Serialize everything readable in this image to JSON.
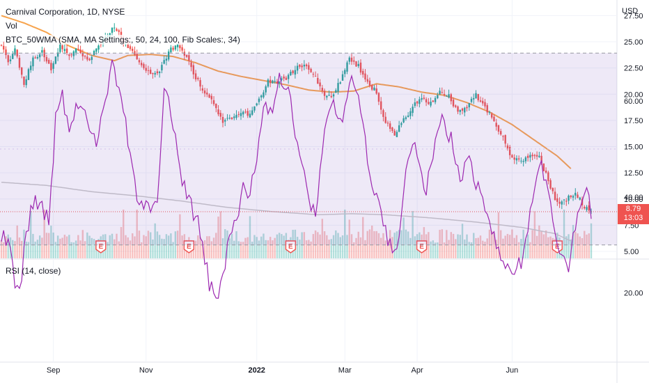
{
  "legend": {
    "symbol": "Carnival Corporation, 1D, NYSE",
    "vol": "Vol",
    "ma": "BTC_50WMA (SMA, MA Settings:, 50, 24, 100, Fib Scales:, 34)",
    "rsi": "RSI (14, close)"
  },
  "currency": "USD",
  "last_price": "8.79",
  "countdown": "13:03",
  "earnings_label": "E",
  "colors": {
    "up": "#26a69a",
    "down": "#ef5350",
    "ma_orange": "#f7a44d",
    "ma_gray": "#c9c9c9",
    "rsi_line": "#9c27b0",
    "rsi_band": "#7e57c2",
    "price_line": "#ef5350",
    "grid": "#f0f3fa"
  },
  "chart_data": [
    {
      "type": "candlestick",
      "title": "Carnival Corporation, 1D, NYSE",
      "ylabel": "USD",
      "ylim": [
        4,
        28
      ],
      "y_ticks": [
        5.0,
        7.5,
        10.0,
        12.5,
        15.0,
        17.5,
        20.0,
        22.5,
        25.0,
        27.5
      ],
      "x_ticks": [
        "Sep",
        "Nov",
        "2022",
        "Mar",
        "Apr",
        "Jun"
      ],
      "x_tick_index": [
        23,
        64,
        113,
        152,
        184,
        226
      ],
      "close_anchors": [
        [
          0,
          24.8
        ],
        [
          3,
          23.0
        ],
        [
          6,
          24.2
        ],
        [
          10,
          20.9
        ],
        [
          14,
          23.5
        ],
        [
          18,
          24.0
        ],
        [
          22,
          22.4
        ],
        [
          26,
          24.7
        ],
        [
          30,
          23.8
        ],
        [
          34,
          24.4
        ],
        [
          38,
          23.2
        ],
        [
          42,
          24.3
        ],
        [
          46,
          25.5
        ],
        [
          50,
          26.4
        ],
        [
          54,
          25.0
        ],
        [
          58,
          23.9
        ],
        [
          62,
          22.6
        ],
        [
          66,
          22.0
        ],
        [
          70,
          22.3
        ],
        [
          74,
          24.0
        ],
        [
          78,
          24.9
        ],
        [
          82,
          23.6
        ],
        [
          86,
          21.6
        ],
        [
          90,
          20.2
        ],
        [
          94,
          19.1
        ],
        [
          98,
          17.5
        ],
        [
          102,
          17.6
        ],
        [
          106,
          18.4
        ],
        [
          110,
          18.1
        ],
        [
          114,
          19.4
        ],
        [
          118,
          21.3
        ],
        [
          122,
          21.0
        ],
        [
          126,
          21.6
        ],
        [
          130,
          22.4
        ],
        [
          134,
          22.8
        ],
        [
          138,
          22.1
        ],
        [
          142,
          20.1
        ],
        [
          146,
          19.7
        ],
        [
          150,
          21.3
        ],
        [
          154,
          23.3
        ],
        [
          158,
          22.7
        ],
        [
          162,
          21.0
        ],
        [
          166,
          20.3
        ],
        [
          170,
          17.2
        ],
        [
          174,
          16.3
        ],
        [
          178,
          17.5
        ],
        [
          182,
          18.9
        ],
        [
          186,
          19.6
        ],
        [
          190,
          19.1
        ],
        [
          194,
          20.3
        ],
        [
          198,
          19.8
        ],
        [
          202,
          18.3
        ],
        [
          206,
          18.9
        ],
        [
          210,
          19.9
        ],
        [
          214,
          18.6
        ],
        [
          218,
          17.6
        ],
        [
          222,
          15.7
        ],
        [
          226,
          13.9
        ],
        [
          230,
          13.6
        ],
        [
          234,
          14.2
        ],
        [
          238,
          13.9
        ],
        [
          242,
          11.8
        ],
        [
          246,
          9.5
        ],
        [
          250,
          9.9
        ],
        [
          254,
          10.7
        ],
        [
          258,
          9.3
        ],
        [
          261,
          8.79
        ]
      ],
      "ma_orange": [
        [
          0,
          27.5
        ],
        [
          10,
          26.8
        ],
        [
          20,
          25.9
        ],
        [
          30,
          24.6
        ],
        [
          40,
          23.7
        ],
        [
          50,
          23.2
        ],
        [
          56,
          23.7
        ],
        [
          66,
          23.8
        ],
        [
          76,
          23.6
        ],
        [
          86,
          23.0
        ],
        [
          96,
          22.2
        ],
        [
          106,
          21.7
        ],
        [
          116,
          21.3
        ],
        [
          126,
          20.9
        ],
        [
          136,
          20.4
        ],
        [
          146,
          20.2
        ],
        [
          156,
          20.3
        ],
        [
          166,
          21.0
        ],
        [
          176,
          20.7
        ],
        [
          186,
          20.2
        ],
        [
          196,
          19.9
        ],
        [
          206,
          19.2
        ],
        [
          216,
          18.3
        ],
        [
          226,
          17.1
        ],
        [
          236,
          15.6
        ],
        [
          246,
          14.1
        ],
        [
          252,
          12.9
        ]
      ],
      "ma_gray": [
        [
          0,
          11.6
        ],
        [
          20,
          11.3
        ],
        [
          40,
          10.7
        ],
        [
          60,
          10.3
        ],
        [
          80,
          9.8
        ],
        [
          100,
          9.2
        ],
        [
          120,
          8.8
        ],
        [
          140,
          8.5
        ],
        [
          155,
          8.6
        ],
        [
          170,
          8.5
        ],
        [
          190,
          8.2
        ],
        [
          210,
          7.8
        ],
        [
          230,
          7.3
        ],
        [
          245,
          6.7
        ],
        [
          252,
          6.0
        ]
      ],
      "earnings_days": [
        44,
        83,
        128,
        186,
        246
      ]
    },
    {
      "type": "bar",
      "title": "Vol"
    },
    {
      "type": "line",
      "title": "RSI (14, close)",
      "ylim": [
        15,
        72
      ],
      "y_ticks": [
        20.0,
        40.0,
        60.0
      ],
      "bands": [
        30,
        70
      ],
      "anchors": [
        [
          0,
          32
        ],
        [
          3,
          30
        ],
        [
          6,
          22
        ],
        [
          8,
          19
        ],
        [
          11,
          33
        ],
        [
          15,
          40
        ],
        [
          18,
          38
        ],
        [
          21,
          35
        ],
        [
          24,
          56
        ],
        [
          27,
          62
        ],
        [
          30,
          52
        ],
        [
          34,
          60
        ],
        [
          38,
          56
        ],
        [
          42,
          52
        ],
        [
          45,
          58
        ],
        [
          49,
          67
        ],
        [
          53,
          60
        ],
        [
          57,
          50
        ],
        [
          61,
          38
        ],
        [
          65,
          38
        ],
        [
          69,
          37
        ],
        [
          72,
          62
        ],
        [
          76,
          56
        ],
        [
          80,
          44
        ],
        [
          84,
          38
        ],
        [
          88,
          33
        ],
        [
          92,
          22
        ],
        [
          96,
          19
        ],
        [
          100,
          29
        ],
        [
          103,
          34
        ],
        [
          107,
          42
        ],
        [
          110,
          40
        ],
        [
          113,
          48
        ],
        [
          116,
          60
        ],
        [
          120,
          58
        ],
        [
          123,
          66
        ],
        [
          127,
          62
        ],
        [
          131,
          50
        ],
        [
          135,
          42
        ],
        [
          139,
          35
        ],
        [
          143,
          53
        ],
        [
          147,
          60
        ],
        [
          151,
          56
        ],
        [
          155,
          64
        ],
        [
          159,
          58
        ],
        [
          163,
          45
        ],
        [
          167,
          39
        ],
        [
          171,
          30
        ],
        [
          175,
          29
        ],
        [
          179,
          45
        ],
        [
          183,
          52
        ],
        [
          187,
          40
        ],
        [
          191,
          49
        ],
        [
          195,
          56
        ],
        [
          199,
          52
        ],
        [
          203,
          44
        ],
        [
          207,
          48
        ],
        [
          211,
          42
        ],
        [
          215,
          35
        ],
        [
          219,
          30
        ],
        [
          223,
          25
        ],
        [
          227,
          24
        ],
        [
          231,
          28
        ],
        [
          235,
          40
        ],
        [
          239,
          46
        ],
        [
          243,
          38
        ],
        [
          247,
          30
        ],
        [
          251,
          26
        ],
        [
          255,
          38
        ],
        [
          259,
          40
        ],
        [
          261,
          37
        ]
      ]
    }
  ]
}
